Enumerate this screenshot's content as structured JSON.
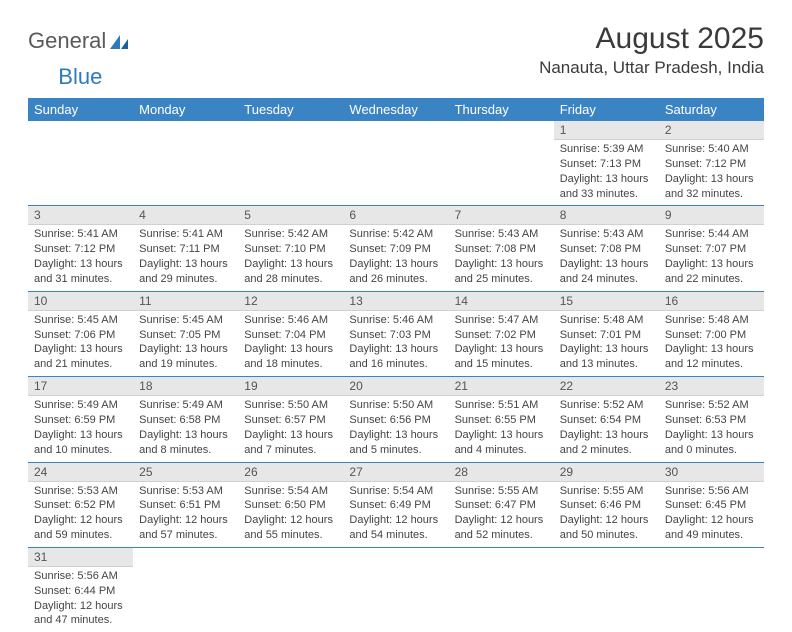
{
  "logo": {
    "text_a": "General",
    "text_b": "Blue"
  },
  "title": "August 2025",
  "location": "Nanauta, Uttar Pradesh, India",
  "colors": {
    "header_bg": "#3b84c4",
    "header_text": "#ffffff",
    "daynum_bg": "#e7e7e7",
    "cell_border": "#3b84c4"
  },
  "day_headers": [
    "Sunday",
    "Monday",
    "Tuesday",
    "Wednesday",
    "Thursday",
    "Friday",
    "Saturday"
  ],
  "weeks": [
    [
      null,
      null,
      null,
      null,
      null,
      {
        "n": "1",
        "sr": "5:39 AM",
        "ss": "7:13 PM",
        "dl": "13 hours and 33 minutes."
      },
      {
        "n": "2",
        "sr": "5:40 AM",
        "ss": "7:12 PM",
        "dl": "13 hours and 32 minutes."
      }
    ],
    [
      {
        "n": "3",
        "sr": "5:41 AM",
        "ss": "7:12 PM",
        "dl": "13 hours and 31 minutes."
      },
      {
        "n": "4",
        "sr": "5:41 AM",
        "ss": "7:11 PM",
        "dl": "13 hours and 29 minutes."
      },
      {
        "n": "5",
        "sr": "5:42 AM",
        "ss": "7:10 PM",
        "dl": "13 hours and 28 minutes."
      },
      {
        "n": "6",
        "sr": "5:42 AM",
        "ss": "7:09 PM",
        "dl": "13 hours and 26 minutes."
      },
      {
        "n": "7",
        "sr": "5:43 AM",
        "ss": "7:08 PM",
        "dl": "13 hours and 25 minutes."
      },
      {
        "n": "8",
        "sr": "5:43 AM",
        "ss": "7:08 PM",
        "dl": "13 hours and 24 minutes."
      },
      {
        "n": "9",
        "sr": "5:44 AM",
        "ss": "7:07 PM",
        "dl": "13 hours and 22 minutes."
      }
    ],
    [
      {
        "n": "10",
        "sr": "5:45 AM",
        "ss": "7:06 PM",
        "dl": "13 hours and 21 minutes."
      },
      {
        "n": "11",
        "sr": "5:45 AM",
        "ss": "7:05 PM",
        "dl": "13 hours and 19 minutes."
      },
      {
        "n": "12",
        "sr": "5:46 AM",
        "ss": "7:04 PM",
        "dl": "13 hours and 18 minutes."
      },
      {
        "n": "13",
        "sr": "5:46 AM",
        "ss": "7:03 PM",
        "dl": "13 hours and 16 minutes."
      },
      {
        "n": "14",
        "sr": "5:47 AM",
        "ss": "7:02 PM",
        "dl": "13 hours and 15 minutes."
      },
      {
        "n": "15",
        "sr": "5:48 AM",
        "ss": "7:01 PM",
        "dl": "13 hours and 13 minutes."
      },
      {
        "n": "16",
        "sr": "5:48 AM",
        "ss": "7:00 PM",
        "dl": "13 hours and 12 minutes."
      }
    ],
    [
      {
        "n": "17",
        "sr": "5:49 AM",
        "ss": "6:59 PM",
        "dl": "13 hours and 10 minutes."
      },
      {
        "n": "18",
        "sr": "5:49 AM",
        "ss": "6:58 PM",
        "dl": "13 hours and 8 minutes."
      },
      {
        "n": "19",
        "sr": "5:50 AM",
        "ss": "6:57 PM",
        "dl": "13 hours and 7 minutes."
      },
      {
        "n": "20",
        "sr": "5:50 AM",
        "ss": "6:56 PM",
        "dl": "13 hours and 5 minutes."
      },
      {
        "n": "21",
        "sr": "5:51 AM",
        "ss": "6:55 PM",
        "dl": "13 hours and 4 minutes."
      },
      {
        "n": "22",
        "sr": "5:52 AM",
        "ss": "6:54 PM",
        "dl": "13 hours and 2 minutes."
      },
      {
        "n": "23",
        "sr": "5:52 AM",
        "ss": "6:53 PM",
        "dl": "13 hours and 0 minutes."
      }
    ],
    [
      {
        "n": "24",
        "sr": "5:53 AM",
        "ss": "6:52 PM",
        "dl": "12 hours and 59 minutes."
      },
      {
        "n": "25",
        "sr": "5:53 AM",
        "ss": "6:51 PM",
        "dl": "12 hours and 57 minutes."
      },
      {
        "n": "26",
        "sr": "5:54 AM",
        "ss": "6:50 PM",
        "dl": "12 hours and 55 minutes."
      },
      {
        "n": "27",
        "sr": "5:54 AM",
        "ss": "6:49 PM",
        "dl": "12 hours and 54 minutes."
      },
      {
        "n": "28",
        "sr": "5:55 AM",
        "ss": "6:47 PM",
        "dl": "12 hours and 52 minutes."
      },
      {
        "n": "29",
        "sr": "5:55 AM",
        "ss": "6:46 PM",
        "dl": "12 hours and 50 minutes."
      },
      {
        "n": "30",
        "sr": "5:56 AM",
        "ss": "6:45 PM",
        "dl": "12 hours and 49 minutes."
      }
    ],
    [
      {
        "n": "31",
        "sr": "5:56 AM",
        "ss": "6:44 PM",
        "dl": "12 hours and 47 minutes."
      },
      null,
      null,
      null,
      null,
      null,
      null
    ]
  ],
  "labels": {
    "sunrise": "Sunrise:",
    "sunset": "Sunset:",
    "daylight": "Daylight:"
  }
}
